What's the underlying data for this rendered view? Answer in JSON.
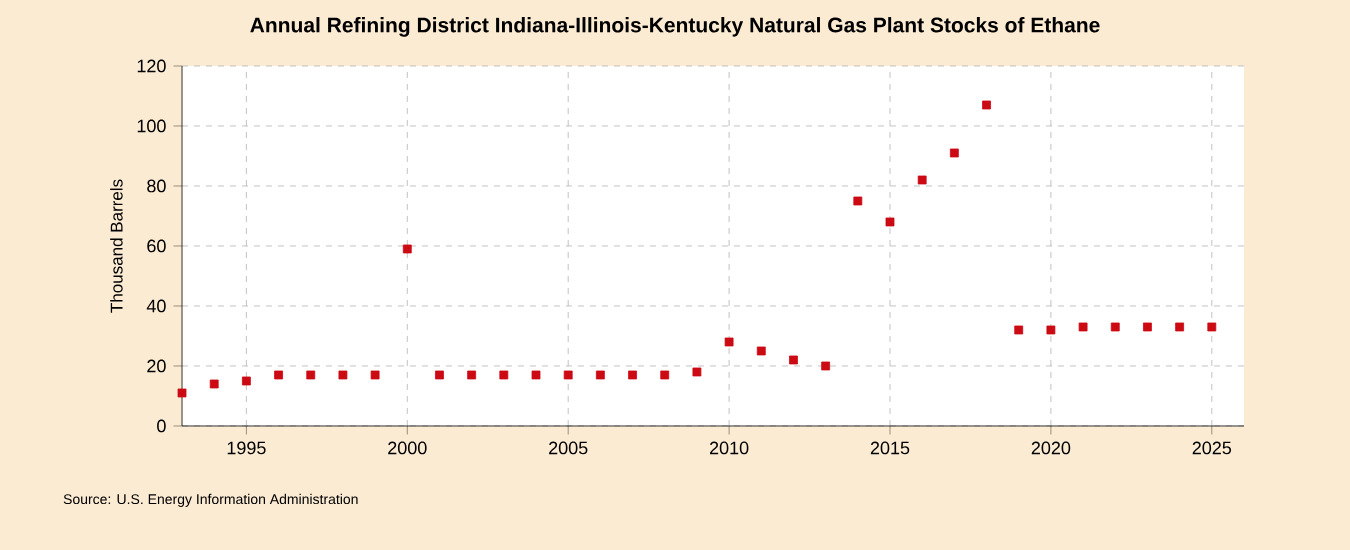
{
  "chart_data": {
    "type": "scatter",
    "title": "Annual Refining District Indiana-Illinois-Kentucky Natural Gas Plant Stocks of Ethane",
    "ylabel": "Thousand Barrels",
    "x": [
      1993,
      1994,
      1995,
      1996,
      1997,
      1998,
      1999,
      2000,
      2001,
      2002,
      2003,
      2004,
      2005,
      2006,
      2007,
      2008,
      2009,
      2010,
      2011,
      2012,
      2013,
      2014,
      2015,
      2016,
      2017,
      2018,
      2019,
      2020,
      2021,
      2022,
      2023,
      2024,
      2025
    ],
    "series": [
      {
        "color": "#cc0a14",
        "values": [
          11,
          14,
          15,
          17,
          17,
          17,
          17,
          59,
          17,
          17,
          17,
          17,
          17,
          17,
          17,
          17,
          18,
          28,
          25,
          22,
          20,
          75,
          68,
          82,
          91,
          107,
          32,
          32,
          33,
          33,
          33,
          33,
          33
        ]
      }
    ],
    "xlim": [
      1993,
      2026
    ],
    "xticks": [
      1995,
      2000,
      2005,
      2010,
      2015,
      2020,
      2025
    ],
    "ylim": [
      0,
      120
    ],
    "yticks": [
      0,
      20,
      40,
      60,
      80,
      100,
      120
    ],
    "grid": true,
    "marker": "square",
    "annotations": [
      "Source: U.S. Energy Information Administration"
    ]
  }
}
